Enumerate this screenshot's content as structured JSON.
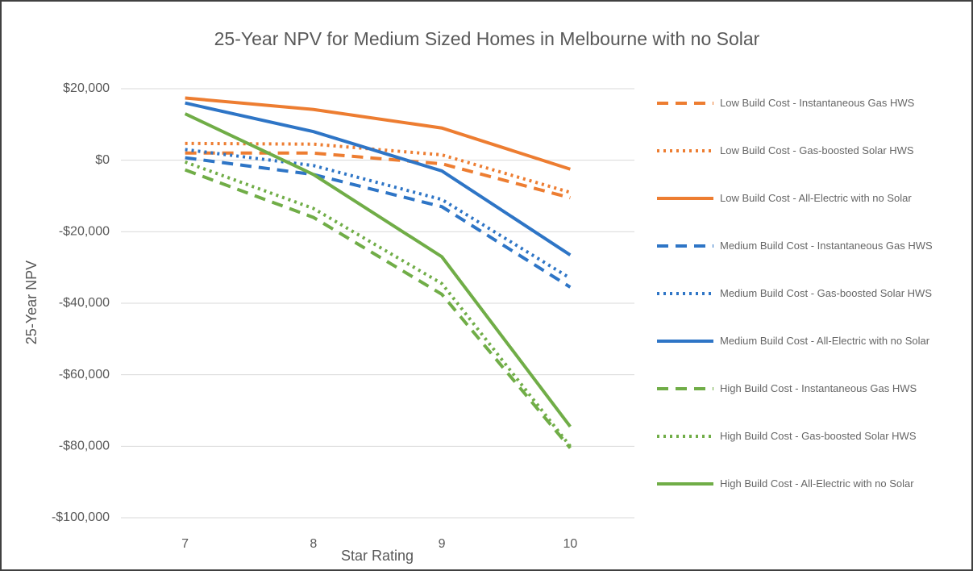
{
  "chart_data": {
    "type": "line",
    "title": "25-Year NPV for Medium Sized Homes in Melbourne with no Solar",
    "x_label": "Star Rating",
    "y_label": "25-Year NPV",
    "categories": [
      "7",
      "8",
      "9",
      "10"
    ],
    "ylim": [
      -100000,
      20000
    ],
    "yticks": [
      {
        "value": -100000,
        "label": "-$100,000"
      },
      {
        "value": -80000,
        "label": "-$80,000"
      },
      {
        "value": -60000,
        "label": "-$60,000"
      },
      {
        "value": -40000,
        "label": "-$40,000"
      },
      {
        "value": -20000,
        "label": "-$20,000"
      },
      {
        "value": 0,
        "label": "$0"
      },
      {
        "value": 20000,
        "label": "$20,000"
      }
    ],
    "grid": true,
    "legend": "right",
    "series": [
      {
        "name": "Low Build Cost - Instantaneous Gas HWS",
        "color": "#ed7d31",
        "dash": "dashed",
        "values": [
          2000,
          2000,
          -1000,
          -10500
        ]
      },
      {
        "name": "Low Build Cost - Gas-boosted Solar HWS",
        "color": "#ed7d31",
        "dash": "dotted",
        "values": [
          4700,
          4500,
          1500,
          -9000
        ]
      },
      {
        "name": "Low Build Cost - All-Electric with no Solar",
        "color": "#ed7d31",
        "dash": "solid",
        "values": [
          17400,
          14200,
          9000,
          -2500
        ]
      },
      {
        "name": "Medium Build Cost - Instantaneous Gas HWS",
        "color": "#2e75c6",
        "dash": "dashed",
        "values": [
          700,
          -4000,
          -13000,
          -35500
        ]
      },
      {
        "name": "Medium Build Cost - Gas-boosted Solar HWS",
        "color": "#2e75c6",
        "dash": "dotted",
        "values": [
          3000,
          -1500,
          -11000,
          -33000
        ]
      },
      {
        "name": "Medium Build Cost - All-Electric with no Solar",
        "color": "#2e75c6",
        "dash": "solid",
        "values": [
          16000,
          8000,
          -3000,
          -26500
        ]
      },
      {
        "name": "High Build Cost - Instantaneous Gas HWS",
        "color": "#70ad47",
        "dash": "dashed",
        "values": [
          -2700,
          -16000,
          -37500,
          -80500
        ]
      },
      {
        "name": "High Build Cost - Gas-boosted Solar HWS",
        "color": "#70ad47",
        "dash": "dotted",
        "values": [
          -500,
          -13500,
          -34500,
          -80000
        ]
      },
      {
        "name": "High Build Cost - All-Electric with no Solar",
        "color": "#70ad47",
        "dash": "solid",
        "values": [
          13000,
          -4000,
          -27000,
          -74500
        ]
      }
    ]
  }
}
